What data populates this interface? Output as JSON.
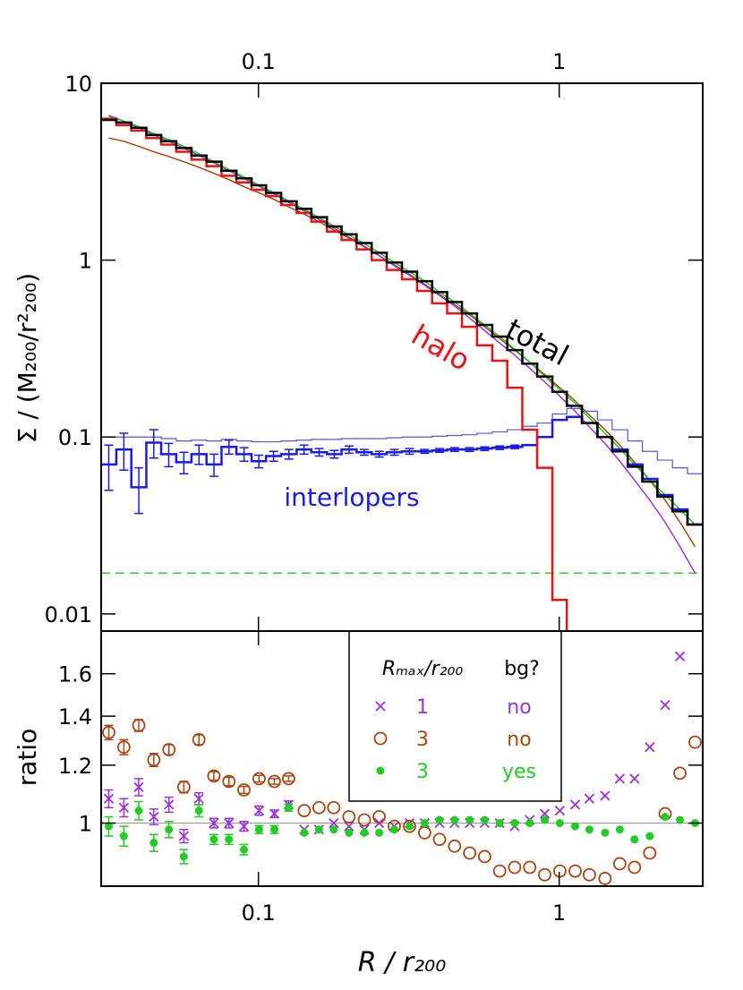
{
  "chart_data": [
    {
      "type": "line",
      "ylabel": "Σ / (M₂₀₀/r²₂₀₀)",
      "log_x": true,
      "log_y": true,
      "xlim": [
        0.03,
        3
      ],
      "ylim": [
        0.008,
        10
      ],
      "xticks": [
        0.1,
        1
      ],
      "yticks": [
        0.01,
        0.1,
        1,
        10
      ],
      "bins": [
        0.03,
        0.0337,
        0.0378,
        0.0424,
        0.0475,
        0.0533,
        0.0599,
        0.0672,
        0.0754,
        0.0845,
        0.0949,
        0.106,
        0.119,
        0.134,
        0.15,
        0.169,
        0.189,
        0.212,
        0.238,
        0.267,
        0.3,
        0.337,
        0.378,
        0.424,
        0.475,
        0.533,
        0.599,
        0.672,
        0.754,
        0.845,
        0.949,
        1.06,
        1.19,
        1.34,
        1.5,
        1.69,
        1.89,
        2.12,
        2.38,
        2.67,
        3.0
      ],
      "x": [
        0.0318,
        0.0357,
        0.04,
        0.0449,
        0.0504,
        0.0565,
        0.0634,
        0.0711,
        0.0798,
        0.0895,
        0.1005,
        0.113,
        0.126,
        0.142,
        0.159,
        0.178,
        0.2,
        0.225,
        0.252,
        0.283,
        0.318,
        0.357,
        0.4,
        0.449,
        0.504,
        0.565,
        0.634,
        0.711,
        0.798,
        0.895,
        1.005,
        1.13,
        1.26,
        1.42,
        1.59,
        1.78,
        2.0,
        2.25,
        2.52,
        2.83
      ],
      "background": {
        "value": 0.017,
        "color": "#33cc33"
      },
      "series": [
        {
          "style": "curve",
          "color": "#aa4411",
          "values": [
            4.9,
            4.7,
            4.4,
            4.1,
            3.85,
            3.6,
            3.35,
            3.1,
            2.85,
            2.6,
            2.4,
            2.2,
            2.0,
            1.82,
            1.65,
            1.48,
            1.33,
            1.19,
            1.06,
            0.94,
            0.83,
            0.73,
            0.64,
            0.56,
            0.49,
            0.42,
            0.36,
            0.31,
            0.265,
            0.225,
            0.19,
            0.16,
            0.133,
            0.11,
            0.09,
            0.072,
            0.057,
            0.044,
            0.033,
            0.024
          ]
        },
        {
          "style": "curve",
          "color": "#9933ee",
          "values": [
            6.6,
            6.1,
            5.6,
            5.1,
            4.7,
            4.3,
            3.9,
            3.55,
            3.2,
            2.9,
            2.62,
            2.36,
            2.12,
            1.9,
            1.7,
            1.52,
            1.35,
            1.2,
            1.06,
            0.93,
            0.82,
            0.72,
            0.63,
            0.55,
            0.47,
            0.4,
            0.34,
            0.29,
            0.245,
            0.205,
            0.17,
            0.14,
            0.114,
            0.092,
            0.073,
            0.057,
            0.044,
            0.033,
            0.024,
            0.017
          ]
        },
        {
          "style": "curve",
          "color": "#22cc22",
          "values": [
            6.5,
            6.1,
            5.7,
            5.2,
            4.8,
            4.4,
            4.0,
            3.6,
            3.25,
            2.95,
            2.65,
            2.4,
            2.16,
            1.94,
            1.74,
            1.56,
            1.39,
            1.24,
            1.1,
            0.97,
            0.86,
            0.76,
            0.66,
            0.58,
            0.5,
            0.43,
            0.37,
            0.315,
            0.265,
            0.22,
            0.185,
            0.155,
            0.128,
            0.105,
            0.086,
            0.07,
            0.057,
            0.047,
            0.039,
            0.032
          ]
        },
        {
          "style": "step-thin",
          "color": "#5555ee",
          "values": [
            0.1,
            0.1,
            0.1,
            0.1,
            0.098,
            0.095,
            0.096,
            0.095,
            0.097,
            0.095,
            0.094,
            0.094,
            0.095,
            0.096,
            0.097,
            0.097,
            0.098,
            0.098,
            0.098,
            0.099,
            0.1,
            0.1,
            0.101,
            0.102,
            0.103,
            0.105,
            0.107,
            0.11,
            0.115,
            0.12,
            0.135,
            0.145,
            0.14,
            0.125,
            0.11,
            0.095,
            0.083,
            0.074,
            0.067,
            0.062
          ]
        },
        {
          "name": "interlopers",
          "style": "step-thick",
          "color": "#1a1aee",
          "values": [
            0.07,
            0.085,
            0.052,
            0.093,
            0.08,
            0.072,
            0.08,
            0.07,
            0.088,
            0.08,
            0.073,
            0.078,
            0.08,
            0.085,
            0.082,
            0.08,
            0.085,
            0.082,
            0.08,
            0.082,
            0.083,
            0.083,
            0.084,
            0.085,
            0.085,
            0.086,
            0.087,
            0.088,
            0.09,
            0.1,
            0.125,
            0.13,
            0.12,
            0.1,
            0.085,
            0.07,
            0.058,
            0.047,
            0.039,
            0.032
          ],
          "errors": [
            0.02,
            0.02,
            0.015,
            0.017,
            0.012,
            0.01,
            0.01,
            0.01,
            0.008,
            0.007,
            0.006,
            0.005,
            0.005,
            0.005,
            0.004,
            0.004,
            0.004,
            0.003,
            0.003,
            0.003,
            0.003,
            0.002,
            0.002,
            0.002,
            0.002,
            0.002,
            0.002,
            0.002,
            null,
            null,
            null,
            null,
            null,
            null,
            null,
            null,
            null,
            null,
            null,
            null
          ]
        },
        {
          "name": "halo",
          "style": "step-thick",
          "color": "#ee1111",
          "values": [
            6.3,
            5.8,
            5.4,
            4.9,
            4.5,
            4.1,
            3.7,
            3.4,
            3.0,
            2.75,
            2.5,
            2.3,
            2.05,
            1.85,
            1.65,
            1.45,
            1.3,
            1.15,
            1.0,
            0.88,
            0.78,
            0.67,
            0.57,
            0.5,
            0.42,
            0.33,
            0.27,
            0.19,
            0.11,
            0.067,
            0.012,
            null,
            null,
            null,
            null,
            null,
            null,
            null,
            null,
            null
          ]
        },
        {
          "name": "total",
          "style": "step-thick",
          "color": "#000000",
          "values": [
            6.2,
            6.0,
            5.6,
            5.1,
            4.7,
            4.3,
            3.9,
            3.6,
            3.2,
            2.9,
            2.65,
            2.4,
            2.15,
            1.95,
            1.75,
            1.55,
            1.4,
            1.25,
            1.1,
            0.97,
            0.86,
            0.76,
            0.66,
            0.58,
            0.5,
            0.43,
            0.37,
            0.31,
            0.26,
            0.22,
            0.18,
            0.15,
            0.12,
            0.1,
            0.083,
            0.068,
            0.056,
            0.046,
            0.038,
            0.032
          ]
        }
      ]
    },
    {
      "type": "scatter",
      "xlabel": "R / r₂₀₀",
      "ylabel": "ratio",
      "log_x": true,
      "log_y": true,
      "xlim": [
        0.03,
        3
      ],
      "ylim": [
        0.82,
        1.83
      ],
      "xticks": [
        0.1,
        1
      ],
      "yticks": [
        1,
        1.2,
        1.4,
        1.6
      ],
      "reference": 1,
      "legend_header": [
        "Rₘₐₓ/r₂₀₀",
        "bg?"
      ],
      "x": [
        0.0318,
        0.0357,
        0.04,
        0.0449,
        0.0504,
        0.0565,
        0.0634,
        0.0711,
        0.0798,
        0.0895,
        0.1005,
        0.113,
        0.126,
        0.142,
        0.159,
        0.178,
        0.2,
        0.225,
        0.252,
        0.283,
        0.318,
        0.357,
        0.4,
        0.449,
        0.504,
        0.565,
        0.634,
        0.711,
        0.798,
        0.895,
        1.005,
        1.13,
        1.26,
        1.42,
        1.59,
        1.78,
        2.0,
        2.25,
        2.52,
        2.83
      ],
      "series": [
        {
          "rmax": "1",
          "bg": "no",
          "marker": "x",
          "color": "#9933dd",
          "values": [
            1.08,
            1.05,
            1.12,
            1.02,
            1.06,
            0.96,
            1.08,
            1.0,
            1.0,
            0.99,
            1.04,
            1.03,
            1.06,
            0.98,
            0.98,
            1.0,
            0.99,
            0.98,
            1.0,
            0.99,
            1.0,
            1.0,
            1.0,
            1.0,
            1.0,
            1.0,
            1.0,
            0.99,
            1.01,
            1.03,
            1.04,
            1.06,
            1.08,
            1.09,
            1.15,
            1.15,
            1.27,
            1.45,
            1.69,
            null
          ],
          "errors": [
            0.03,
            0.03,
            0.03,
            0.025,
            0.025,
            0.02,
            0.02,
            0.015,
            0.015,
            0.015,
            0.015,
            0.012,
            0.012,
            null,
            null,
            null,
            null,
            null,
            null,
            null,
            null,
            null,
            null,
            null,
            null,
            null,
            null,
            null,
            null,
            null,
            null,
            null,
            null,
            null,
            null,
            null,
            null,
            null,
            null,
            null
          ]
        },
        {
          "rmax": "3",
          "bg": "no",
          "marker": "circle",
          "color": "#aa4411",
          "values": [
            1.33,
            1.27,
            1.36,
            1.22,
            1.26,
            1.12,
            1.3,
            1.16,
            1.14,
            1.11,
            1.15,
            1.14,
            1.15,
            1.04,
            1.05,
            1.05,
            1.02,
            1.01,
            1.02,
            0.99,
            0.99,
            0.97,
            0.95,
            0.93,
            0.91,
            0.9,
            0.86,
            0.87,
            0.87,
            0.85,
            0.86,
            0.86,
            0.85,
            0.84,
            0.88,
            0.87,
            0.91,
            1.03,
            1.17,
            1.29
          ],
          "errors": [
            0.03,
            0.03,
            0.025,
            0.025,
            0.02,
            0.02,
            0.02,
            0.015,
            0.015,
            0.012,
            0.012,
            0.01,
            0.01,
            null,
            null,
            null,
            null,
            null,
            null,
            null,
            null,
            null,
            null,
            null,
            null,
            null,
            null,
            null,
            null,
            null,
            null,
            null,
            null,
            null,
            null,
            null,
            null,
            null,
            null,
            null
          ]
        },
        {
          "rmax": "3",
          "bg": "yes",
          "marker": "dot",
          "color": "#22cc22",
          "values": [
            0.99,
            0.96,
            1.04,
            0.94,
            0.98,
            0.9,
            1.04,
            0.95,
            0.95,
            0.92,
            0.98,
            0.98,
            1.05,
            0.97,
            0.98,
            0.98,
            0.97,
            0.97,
            0.97,
            0.98,
            0.99,
            1.0,
            1.01,
            1.01,
            1.01,
            1.01,
            1.0,
            1.0,
            1.0,
            1.01,
            1.0,
            0.99,
            0.98,
            0.97,
            0.98,
            0.95,
            0.96,
            1.02,
            1.01,
            1.0
          ],
          "errors": [
            0.03,
            0.03,
            0.03,
            0.025,
            0.025,
            0.02,
            0.02,
            0.015,
            0.015,
            0.015,
            0.012,
            0.012,
            0.012,
            null,
            null,
            null,
            null,
            null,
            null,
            null,
            null,
            null,
            null,
            null,
            null,
            null,
            null,
            null,
            null,
            null,
            null,
            null,
            null,
            null,
            null,
            null,
            null,
            null,
            null,
            null
          ]
        }
      ]
    }
  ]
}
